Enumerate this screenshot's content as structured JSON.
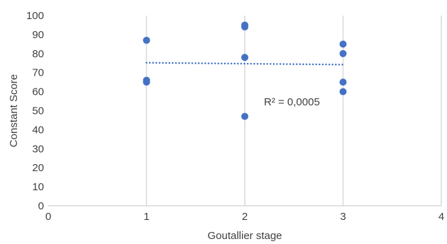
{
  "chart_data": {
    "type": "scatter",
    "xlabel": "Goutallier stage",
    "ylabel": "Constant Score",
    "xlim": [
      0,
      4
    ],
    "ylim": [
      0,
      100
    ],
    "x_ticks": [
      0,
      1,
      2,
      3,
      4
    ],
    "y_ticks": [
      0,
      10,
      20,
      30,
      40,
      50,
      60,
      70,
      80,
      90,
      100
    ],
    "grid": "vertical",
    "legend": "none",
    "marker_color": "#4472c4",
    "gridline_color": "#d9d9d9",
    "series": [
      {
        "points": [
          {
            "x": 1,
            "y": 87
          },
          {
            "x": 1,
            "y": 66
          },
          {
            "x": 1,
            "y": 65
          },
          {
            "x": 2,
            "y": 95
          },
          {
            "x": 2,
            "y": 94
          },
          {
            "x": 2,
            "y": 78
          },
          {
            "x": 2,
            "y": 47
          },
          {
            "x": 3,
            "y": 85
          },
          {
            "x": 3,
            "y": 80
          },
          {
            "x": 3,
            "y": 65
          },
          {
            "x": 3,
            "y": 60
          }
        ]
      }
    ],
    "trendline": {
      "type": "linear",
      "x_range": [
        1,
        3
      ],
      "y_start": 75.2,
      "y_end": 74.2,
      "style": "dotted"
    },
    "annotation": "R² = 0,0005"
  }
}
